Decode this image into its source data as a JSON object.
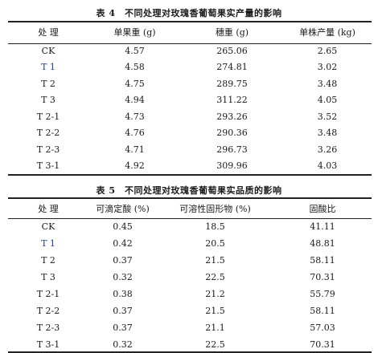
{
  "table4": {
    "caption": "表 4　不同处理对玫瑰香葡萄果实产量的影响",
    "headers": [
      "处 理",
      "单果重 (g)",
      "穗重 (g)",
      "单株产量 (kg)"
    ],
    "rows": [
      [
        "CK",
        "4.57",
        "265.06",
        "2.65"
      ],
      [
        "T 1",
        "4.58",
        "274.81",
        "3.02"
      ],
      [
        "T 2",
        "4.75",
        "289.75",
        "3.48"
      ],
      [
        "T 3",
        "4.94",
        "311.22",
        "4.05"
      ],
      [
        "T 2-1",
        "4.73",
        "293.26",
        "3.52"
      ],
      [
        "T 2-2",
        "4.76",
        "290.36",
        "3.48"
      ],
      [
        "T 2-3",
        "4.71",
        "296.73",
        "3.26"
      ],
      [
        "T 3-1",
        "4.92",
        "309.96",
        "4.03"
      ]
    ]
  },
  "table5": {
    "caption": "表 5　不同处理对玫瑰香葡萄果实品质的影响",
    "headers": [
      "处 理",
      "可滴定酸 (%)",
      "可溶性固形物 (%)",
      "固酸比"
    ],
    "rows": [
      [
        "CK",
        "0.45",
        "18.5",
        "41.11"
      ],
      [
        "T 1",
        "0.42",
        "20.5",
        "48.81"
      ],
      [
        "T 2",
        "0.37",
        "21.5",
        "58.11"
      ],
      [
        "T 3",
        "0.32",
        "22.5",
        "70.31"
      ],
      [
        "T 2-1",
        "0.38",
        "21.2",
        "55.79"
      ],
      [
        "T 2-2",
        "0.37",
        "21.5",
        "58.11"
      ],
      [
        "T 2-3",
        "0.37",
        "21.1",
        "57.03"
      ],
      [
        "T 3-1",
        "0.32",
        "22.5",
        "70.31"
      ]
    ]
  }
}
